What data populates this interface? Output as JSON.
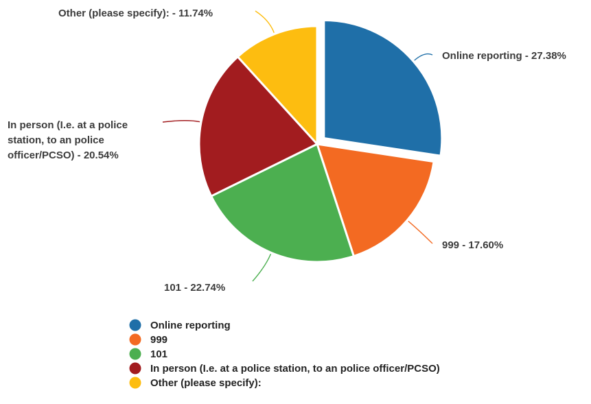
{
  "chart_data": {
    "type": "pie",
    "title": "",
    "categories": [
      "Online reporting",
      "999",
      "101",
      "In person (I.e. at a police station, to an police officer/PCSO)",
      "Other (please specify):"
    ],
    "values": [
      27.38,
      17.6,
      22.74,
      20.54,
      11.74
    ],
    "colors": [
      "#1f6fa8",
      "#f36a22",
      "#4caf50",
      "#a21c1f",
      "#fdbd10"
    ],
    "exploded": "Online reporting",
    "data_labels": [
      [
        "Online reporting - 27.38%"
      ],
      [
        "999 - 17.60%"
      ],
      [
        "101 - 22.74%"
      ],
      [
        "In person (I.e. at a police",
        "station, to an police",
        "officer/PCSO) - 20.54%"
      ],
      [
        "Other (please specify): - 11.74%"
      ]
    ],
    "legend_position": "bottom-left"
  }
}
